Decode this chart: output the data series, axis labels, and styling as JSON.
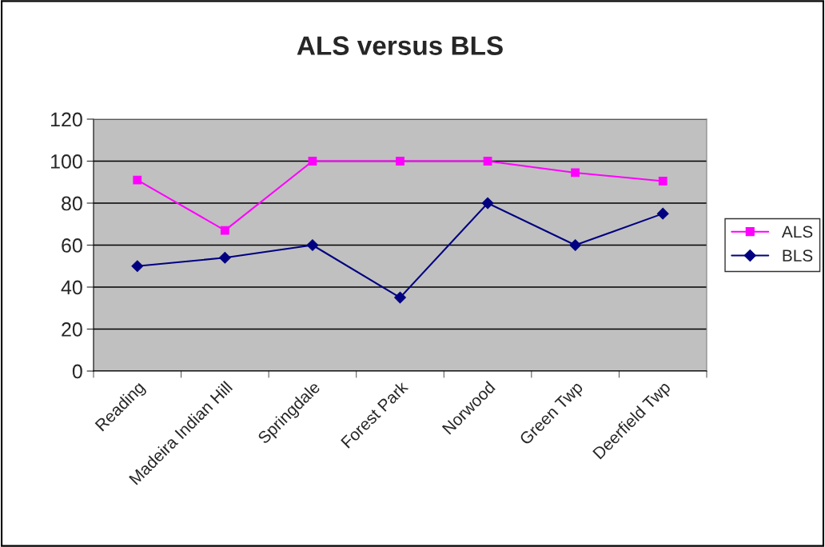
{
  "chart_data": {
    "type": "line",
    "title": "ALS versus BLS",
    "categories": [
      "Reading",
      "Madeira Indian Hill",
      "Springdale",
      "Forest Park",
      "Norwood",
      "Green Twp",
      "Deerfield Twp"
    ],
    "series": [
      {
        "name": "ALS",
        "color": "#ff00ff",
        "marker": "square",
        "values": [
          91,
          67,
          100,
          100,
          100,
          94.5,
          90.5
        ]
      },
      {
        "name": "BLS",
        "color": "#000080",
        "marker": "diamond",
        "values": [
          50,
          54,
          60,
          35,
          80,
          60,
          75
        ]
      }
    ],
    "ylim": [
      0,
      120
    ],
    "yticks": [
      0,
      20,
      40,
      60,
      80,
      100,
      120
    ],
    "grid": "y",
    "legend": "right"
  }
}
